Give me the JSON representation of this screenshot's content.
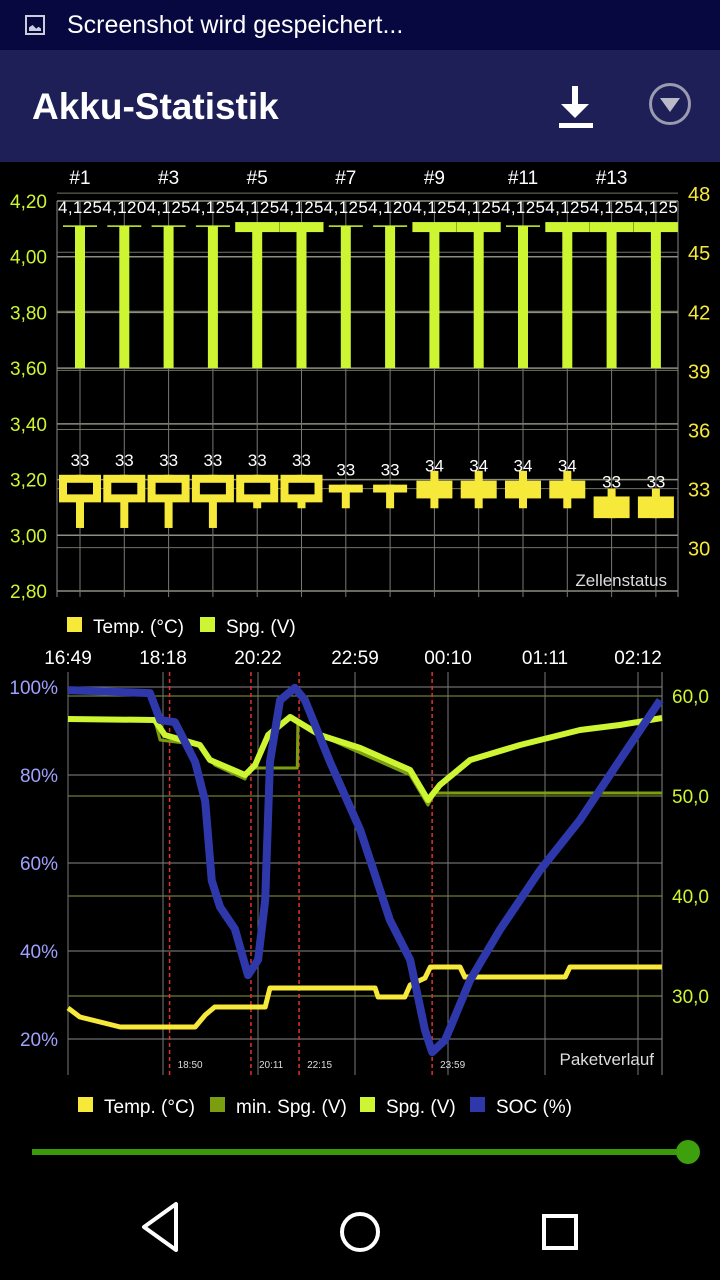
{
  "status_bar": {
    "notification": "Screenshot wird gespeichert...",
    "icon": "image-icon"
  },
  "app_bar": {
    "title": "Akku-Statistik",
    "download_icon": "download-icon",
    "menu_icon": "dropdown-circle-icon"
  },
  "colors": {
    "temp": "#f6e93a",
    "spg": "#cdf532",
    "min_spg": "#7a9e10",
    "soc": "#2e38ab",
    "marker": "#e03030",
    "slider": "#3a9a0a"
  },
  "chart_data": [
    {
      "type": "candlestick",
      "title": "Zellenstatus",
      "x_tick_labels": [
        "#1",
        "#3",
        "#5",
        "#7",
        "#9",
        "#11",
        "#13"
      ],
      "left_axis": {
        "ticks": [
          "4,20",
          "4,00",
          "3,80",
          "3,60",
          "3,40",
          "3,20",
          "3,00",
          "2,80"
        ],
        "ylim": [
          2.8,
          4.2
        ]
      },
      "right_axis": {
        "ticks": [
          "48",
          "45",
          "42",
          "39",
          "36",
          "33",
          "30"
        ],
        "ylim": [
          27.8,
          47.6
        ]
      },
      "legend": [
        {
          "name": "Temp. (°C)",
          "color": "#f6e93a"
        },
        {
          "name": "Spg. (V)",
          "color": "#cdf532"
        }
      ],
      "cells": [
        {
          "v_label": "4,125",
          "v_high": 4.11,
          "v_low": 3.6,
          "thick": false,
          "t_label": "33",
          "t_high": 33.7,
          "t_low": 31.0,
          "t_box": [
            32.3,
            33.7
          ],
          "hollow": true
        },
        {
          "v_label": "4,120",
          "v_high": 4.11,
          "v_low": 3.6,
          "thick": false,
          "t_label": "33",
          "t_high": 33.7,
          "t_low": 31.0,
          "t_box": [
            32.3,
            33.7
          ],
          "hollow": true
        },
        {
          "v_label": "4,125",
          "v_high": 4.11,
          "v_low": 3.6,
          "thick": false,
          "t_label": "33",
          "t_high": 33.7,
          "t_low": 31.0,
          "t_box": [
            32.3,
            33.7
          ],
          "hollow": true
        },
        {
          "v_label": "4,125",
          "v_high": 4.11,
          "v_low": 3.6,
          "thick": false,
          "t_label": "33",
          "t_high": 33.7,
          "t_low": 31.0,
          "t_box": [
            32.3,
            33.7
          ],
          "hollow": true
        },
        {
          "v_label": "4,125",
          "v_high": 4.11,
          "v_low": 3.6,
          "thick": true,
          "t_label": "33",
          "t_high": 33.7,
          "t_low": 32.0,
          "t_box": [
            32.3,
            33.7
          ],
          "hollow": true
        },
        {
          "v_label": "4,125",
          "v_high": 4.11,
          "v_low": 3.6,
          "thick": true,
          "t_label": "33",
          "t_high": 33.7,
          "t_low": 32.0,
          "t_box": [
            32.3,
            33.7
          ],
          "hollow": true
        },
        {
          "v_label": "4,125",
          "v_high": 4.11,
          "v_low": 3.6,
          "thick": false,
          "t_label": "33",
          "t_high": 33.2,
          "t_low": 32.0,
          "t_box": [
            32.8,
            33.2
          ],
          "hollow": false
        },
        {
          "v_label": "4,120",
          "v_high": 4.11,
          "v_low": 3.6,
          "thick": false,
          "t_label": "33",
          "t_high": 33.2,
          "t_low": 32.0,
          "t_box": [
            32.8,
            33.2
          ],
          "hollow": false
        },
        {
          "v_label": "4,125",
          "v_high": 4.11,
          "v_low": 3.6,
          "thick": true,
          "t_label": "34",
          "t_high": 33.9,
          "t_low": 32.0,
          "t_box": [
            32.5,
            33.4
          ],
          "hollow": false
        },
        {
          "v_label": "4,125",
          "v_high": 4.11,
          "v_low": 3.6,
          "thick": true,
          "t_label": "34",
          "t_high": 33.9,
          "t_low": 32.0,
          "t_box": [
            32.5,
            33.4
          ],
          "hollow": false
        },
        {
          "v_label": "4,125",
          "v_high": 4.11,
          "v_low": 3.6,
          "thick": false,
          "t_label": "34",
          "t_high": 33.9,
          "t_low": 32.0,
          "t_box": [
            32.5,
            33.4
          ],
          "hollow": false
        },
        {
          "v_label": "4,125",
          "v_high": 4.11,
          "v_low": 3.6,
          "thick": true,
          "t_label": "34",
          "t_high": 33.9,
          "t_low": 32.0,
          "t_box": [
            32.5,
            33.4
          ],
          "hollow": false
        },
        {
          "v_label": "4,125",
          "v_high": 4.11,
          "v_low": 3.6,
          "thick": true,
          "t_label": "33",
          "t_high": 33.0,
          "t_low": 31.5,
          "t_box": [
            31.5,
            32.6
          ],
          "hollow": false
        },
        {
          "v_label": "4,125",
          "v_high": 4.11,
          "v_low": 3.6,
          "thick": true,
          "t_label": "33",
          "t_high": 33.0,
          "t_low": 31.5,
          "t_box": [
            31.5,
            32.6
          ],
          "hollow": false
        }
      ]
    },
    {
      "type": "line",
      "title": "Paketverlauf",
      "x_tick_labels": [
        "16:49",
        "18:18",
        "20:22",
        "22:59",
        "00:10",
        "01:11",
        "02:12"
      ],
      "left_axis": {
        "ticks": [
          "100%",
          "80%",
          "60%",
          "40%",
          "20%"
        ],
        "ylim": [
          20,
          100
        ]
      },
      "right_axis": {
        "ticks": [
          "60,0",
          "50,0",
          "40,0",
          "30,0"
        ],
        "ylim": [
          25.7,
          60.1
        ]
      },
      "markers": [
        {
          "x": 17.1,
          "label": "18:50"
        },
        {
          "x": 30.8,
          "label": "20:11"
        },
        {
          "x": 38.9,
          "label": "22:15"
        },
        {
          "x": 61.3,
          "label": "23:59"
        }
      ],
      "legend": [
        {
          "name": "Temp. (°C)",
          "color": "#f6e93a"
        },
        {
          "name": "min. Spg. (V)",
          "color": "#7a9e10"
        },
        {
          "name": "Spg. (V)",
          "color": "#cdf532"
        },
        {
          "name": "SOC (%)",
          "color": "#2e38ab"
        }
      ],
      "series": [
        {
          "name": "Temp. (°C)",
          "axis": "right",
          "points": [
            [
              0,
              28.8
            ],
            [
              2,
              27.9
            ],
            [
              8.8,
              26.9
            ],
            [
              21.4,
              26.9
            ],
            [
              23.1,
              28.1
            ],
            [
              24.7,
              28.9
            ],
            [
              33.2,
              28.9
            ],
            [
              34,
              30.8
            ],
            [
              51.7,
              30.8
            ],
            [
              52.2,
              29.9
            ],
            [
              56.7,
              29.9
            ],
            [
              57.6,
              31.1
            ],
            [
              60.1,
              31.8
            ],
            [
              61,
              32.9
            ],
            [
              66,
              32.9
            ],
            [
              66.8,
              31.9
            ],
            [
              83.7,
              31.9
            ],
            [
              84.5,
              32.9
            ],
            [
              100,
              32.9
            ]
          ]
        },
        {
          "name": "min. Spg. (V)",
          "axis": "right",
          "points": [
            [
              0,
              57.7
            ],
            [
              14.6,
              57.6
            ],
            [
              15.5,
              55.6
            ],
            [
              22.2,
              55.1
            ],
            [
              24.7,
              53.1
            ],
            [
              29.8,
              51.7
            ],
            [
              30.6,
              52.8
            ],
            [
              38.6,
              52.8
            ],
            [
              38.7,
              57.4
            ],
            [
              42.4,
              56.1
            ],
            [
              57.6,
              52.1
            ],
            [
              60.6,
              49.1
            ],
            [
              61.8,
              50.3
            ],
            [
              100,
              50.3
            ]
          ]
        },
        {
          "name": "Spg. (V)",
          "axis": "right",
          "points": [
            [
              0,
              57.7
            ],
            [
              14.6,
              57.6
            ],
            [
              16.3,
              56.1
            ],
            [
              22.2,
              55.1
            ],
            [
              23.9,
              53.6
            ],
            [
              29.8,
              52.1
            ],
            [
              31.5,
              53.1
            ],
            [
              33.7,
              56.1
            ],
            [
              37.4,
              57.9
            ],
            [
              42.4,
              56.1
            ],
            [
              49.2,
              54.8
            ],
            [
              57.6,
              52.6
            ],
            [
              60.6,
              49.6
            ],
            [
              62.6,
              51.1
            ],
            [
              67.7,
              53.6
            ],
            [
              76.1,
              55.1
            ],
            [
              86.2,
              56.6
            ],
            [
              92.9,
              57.1
            ],
            [
              100,
              57.8
            ]
          ]
        },
        {
          "name": "SOC (%)",
          "axis": "left",
          "points": [
            [
              0,
              99.3
            ],
            [
              13.8,
              98.6
            ],
            [
              15.5,
              92.5
            ],
            [
              18,
              92
            ],
            [
              21.4,
              83
            ],
            [
              23.1,
              74
            ],
            [
              24.2,
              56
            ],
            [
              25.6,
              50
            ],
            [
              28.1,
              45
            ],
            [
              30.3,
              34.5
            ],
            [
              32,
              38
            ],
            [
              33.2,
              51.6
            ],
            [
              34,
              83
            ],
            [
              35.7,
              97
            ],
            [
              38.2,
              99.8
            ],
            [
              39.9,
              97
            ],
            [
              44.1,
              83
            ],
            [
              49.2,
              67.5
            ],
            [
              54.2,
              47
            ],
            [
              57.6,
              38
            ],
            [
              60.1,
              22
            ],
            [
              61.3,
              17
            ],
            [
              63.5,
              19.8
            ],
            [
              67.7,
              33.4
            ],
            [
              72.7,
              44.8
            ],
            [
              79.5,
              58.4
            ],
            [
              86.2,
              69.8
            ],
            [
              92.9,
              83.4
            ],
            [
              99.7,
              97
            ]
          ]
        }
      ]
    }
  ],
  "slider": {
    "value_percent": 100
  },
  "nav_bar": {
    "back_icon": "back-icon",
    "home_icon": "home-icon",
    "recents_icon": "recents-icon"
  }
}
